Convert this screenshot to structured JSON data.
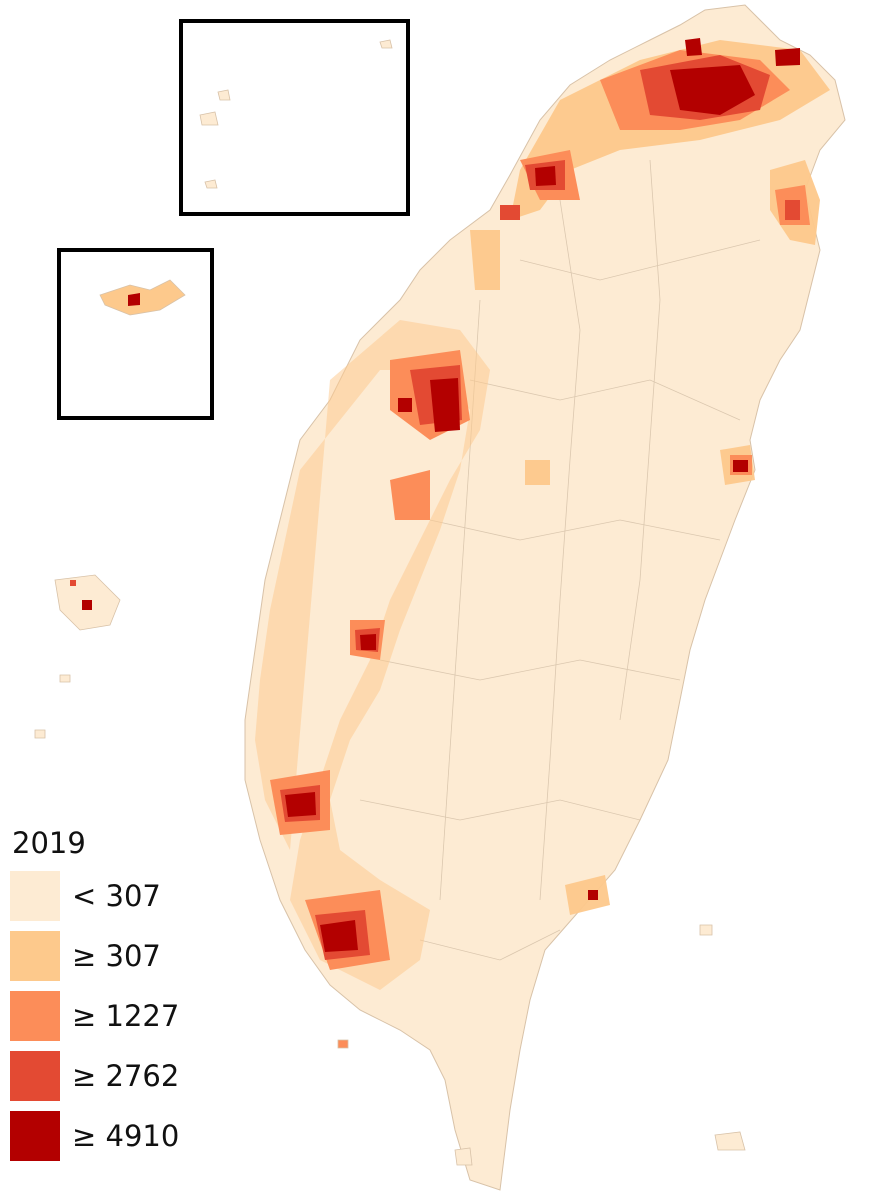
{
  "legend": {
    "title": "2019",
    "items": [
      {
        "label": "< 307",
        "color": "#fdebd3"
      },
      {
        "label": "≥ 307",
        "color": "#fdc98c"
      },
      {
        "label": "≥ 1227",
        "color": "#fc8d59"
      },
      {
        "label": "≥ 2762",
        "color": "#e34a33"
      },
      {
        "label": "≥ 4910",
        "color": "#b30000"
      }
    ]
  }
}
